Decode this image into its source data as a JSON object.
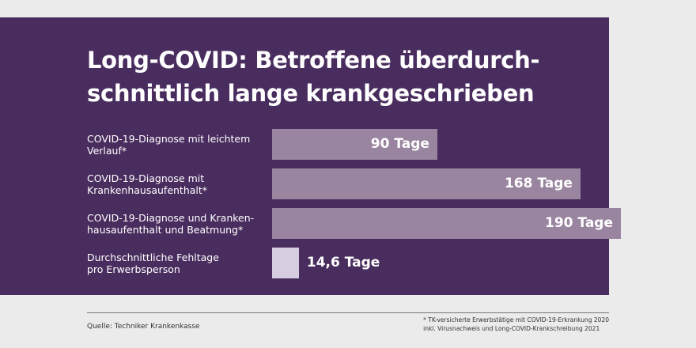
{
  "chart_data": {
    "type": "bar",
    "orientation": "horizontal",
    "title": "Long-COVID: Betroffene überdurch-\nschnittlich lange krankgeschrieben",
    "categories": [
      "COVID-19-Diagnose mit leichtem\nVerlauf*",
      "COVID-19-Diagnose mit\nKrankenhausaufenthalt*",
      "COVID-19-Diagnose und Kranken-\nhausaufenthalt und Beatmung*",
      "Durchschnittliche Fehltage\npro Erwerbsperson"
    ],
    "values": [
      90,
      168,
      190,
      14.6
    ],
    "value_labels": [
      "90 Tage",
      "168 Tage",
      "190 Tage",
      "14,6 Tage"
    ],
    "unit": "Tage",
    "xlim": [
      0,
      190
    ],
    "colors": [
      "#9a85a0",
      "#9a85a0",
      "#9a85a0",
      "#d6cde0"
    ]
  },
  "source": "Quelle: Techniker Krankenkasse",
  "footnote": "*  TK-versicherte Erwerbstätige mit COVID-19-Erkrankung 2020\n   inkl. Virusnachweis und Long-COVID-Krankschreibung 2021",
  "colors": {
    "panel": "#4a2d5f",
    "background": "#ebebeb"
  }
}
